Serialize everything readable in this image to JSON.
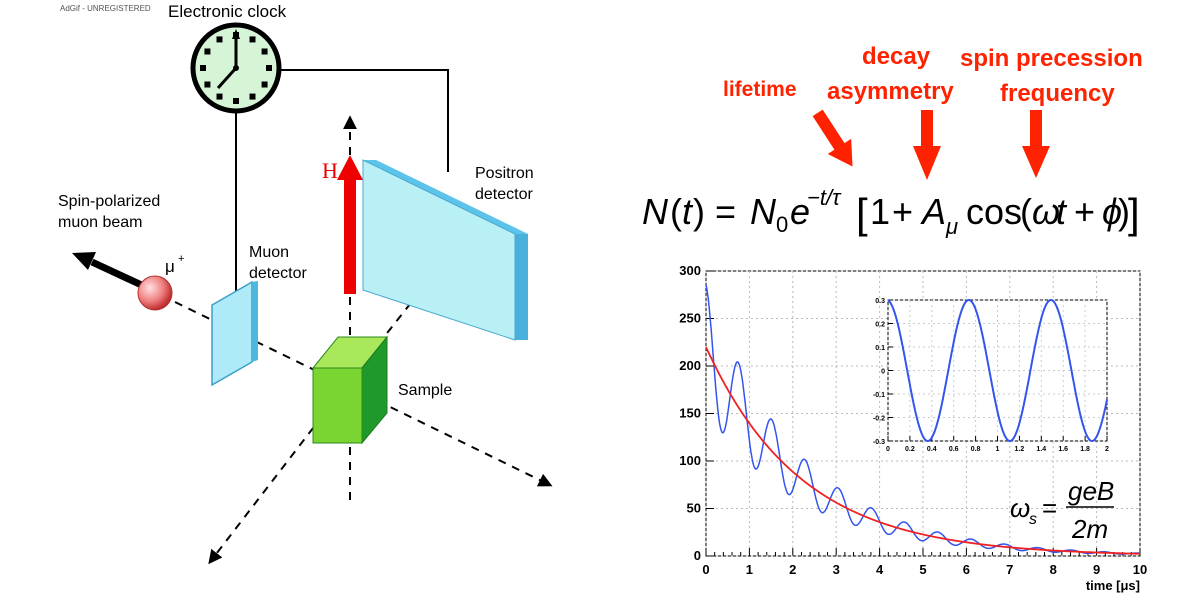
{
  "watermark": "AdGif - UNREGISTERED",
  "diagram": {
    "clock_label": "Electronic clock",
    "beam_label_line1": "Spin-polarized",
    "beam_label_line2": "muon beam",
    "muon_symbol": "μ",
    "muon_charge": "+",
    "muon_detector_line1": "Muon",
    "muon_detector_line2": "detector",
    "field_label": "H",
    "positron_detector_line1": "Positron",
    "positron_detector_line2": "detector",
    "sample_label": "Sample"
  },
  "annotations": {
    "lifetime": "lifetime",
    "decay_line1": "decay",
    "decay_line2": "asymmetry",
    "spin_line1": "spin precession",
    "spin_line2": "frequency",
    "color": "#ff2200"
  },
  "equation": {
    "N": "N",
    "t": "t",
    "N0": "N",
    "zero": "0",
    "e": "e",
    "exponent": "−t/τ",
    "one": "1",
    "plus": "+",
    "A": "A",
    "mu": "μ",
    "cos": "cos",
    "omega": "ω",
    "phi": "ϕ",
    "omega_s": "ω",
    "s": "s",
    "numerator": "geB",
    "denominator": "2m"
  },
  "chart_data": [
    {
      "type": "line",
      "xlabel": "time [μs]",
      "xlim": [
        0,
        10
      ],
      "ylim": [
        0,
        300
      ],
      "x_ticks": [
        0,
        1,
        2,
        3,
        4,
        5,
        6,
        7,
        8,
        9,
        10
      ],
      "y_ticks": [
        0,
        50,
        100,
        150,
        200,
        250,
        300
      ],
      "grid": true,
      "series": [
        {
          "role": "oscillating-signal",
          "color": "#3355ee",
          "N0": 220,
          "tau_us": 2.2,
          "asymmetry": 0.3,
          "omega_rad_per_us": 8.2,
          "phase": 0.1
        },
        {
          "role": "exponential-decay",
          "color": "#ee2222",
          "N0": 220,
          "tau_us": 2.2
        }
      ]
    },
    {
      "type": "line",
      "xlim": [
        0,
        2
      ],
      "ylim": [
        -0.3,
        0.3
      ],
      "x_ticks": [
        "0",
        "0.2",
        "0.4",
        "0.6",
        "0.8",
        "1",
        "1.2",
        "1.4",
        "1.6",
        "1.8",
        "2"
      ],
      "y_ticks": [
        "-0.3",
        "-0.2",
        "-0.1",
        "0",
        "0.1",
        "0.2",
        "0.3"
      ],
      "grid": true,
      "series": [
        {
          "role": "asymmetry",
          "color": "#3355ee",
          "amplitude": 0.3,
          "period_us": 0.75,
          "phase": 0.1
        }
      ]
    }
  ]
}
